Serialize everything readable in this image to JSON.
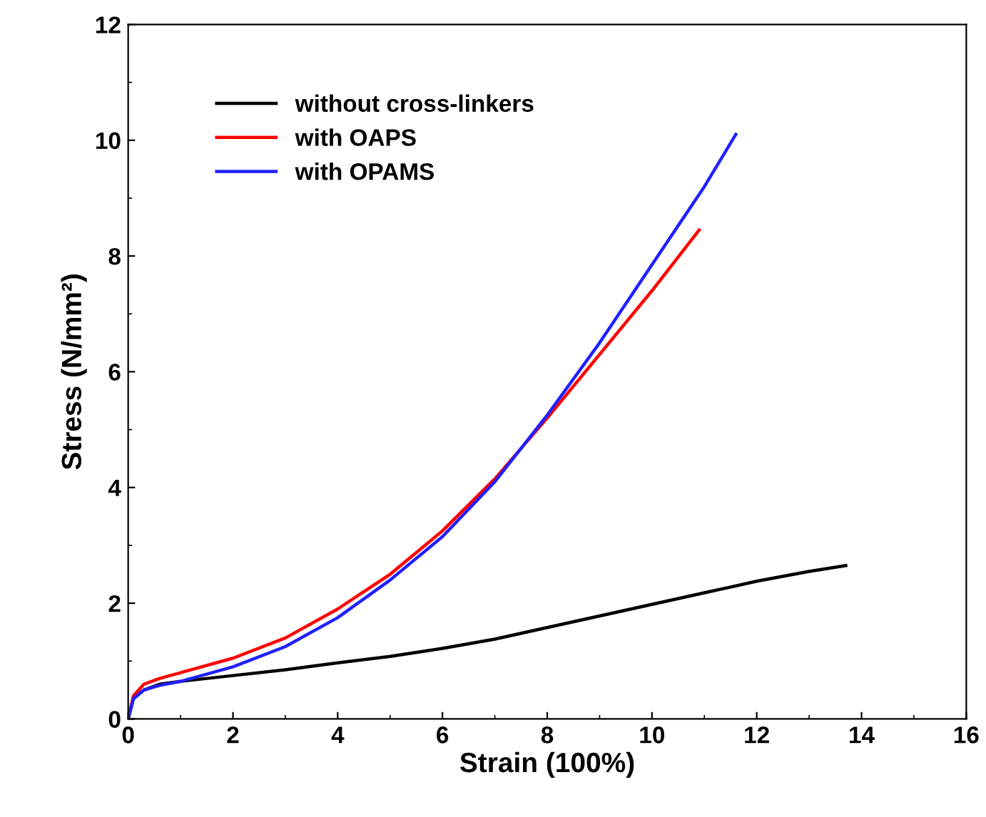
{
  "chart_data": {
    "type": "line",
    "xlabel": "Strain (100%)",
    "ylabel": "Stress (N/mm²)",
    "xlim": [
      0,
      16
    ],
    "ylim": [
      0,
      12
    ],
    "xticks": [
      0,
      2,
      4,
      6,
      8,
      10,
      12,
      14,
      16
    ],
    "yticks": [
      0,
      2,
      4,
      6,
      8,
      10,
      12
    ],
    "legend": "top left",
    "grid": false,
    "series": [
      {
        "name": "without cross-linkers",
        "color": "#000000",
        "x": [
          0,
          0.1,
          0.3,
          0.6,
          1,
          2,
          3,
          4,
          5,
          6,
          7,
          8,
          9,
          10,
          11,
          12,
          13,
          13.7
        ],
        "values": [
          0,
          0.35,
          0.5,
          0.6,
          0.65,
          0.75,
          0.85,
          0.97,
          1.08,
          1.22,
          1.38,
          1.58,
          1.78,
          1.98,
          2.18,
          2.38,
          2.55,
          2.65
        ]
      },
      {
        "name": "with OAPS",
        "color": "#ff0000",
        "x": [
          0,
          0.1,
          0.3,
          0.6,
          1,
          2,
          3,
          4,
          5,
          6,
          7,
          8,
          9,
          10,
          10.9
        ],
        "values": [
          0,
          0.4,
          0.6,
          0.7,
          0.8,
          1.05,
          1.4,
          1.9,
          2.5,
          3.25,
          4.15,
          5.2,
          6.3,
          7.4,
          8.45
        ]
      },
      {
        "name": "with OPAMS",
        "color": "#2020ff",
        "x": [
          0,
          0.1,
          0.3,
          0.6,
          1,
          2,
          3,
          4,
          5,
          6,
          7,
          8,
          9,
          10,
          11,
          11.6
        ],
        "values": [
          0,
          0.35,
          0.5,
          0.58,
          0.65,
          0.9,
          1.25,
          1.75,
          2.4,
          3.15,
          4.1,
          5.25,
          6.5,
          7.85,
          9.2,
          10.1
        ]
      }
    ]
  }
}
